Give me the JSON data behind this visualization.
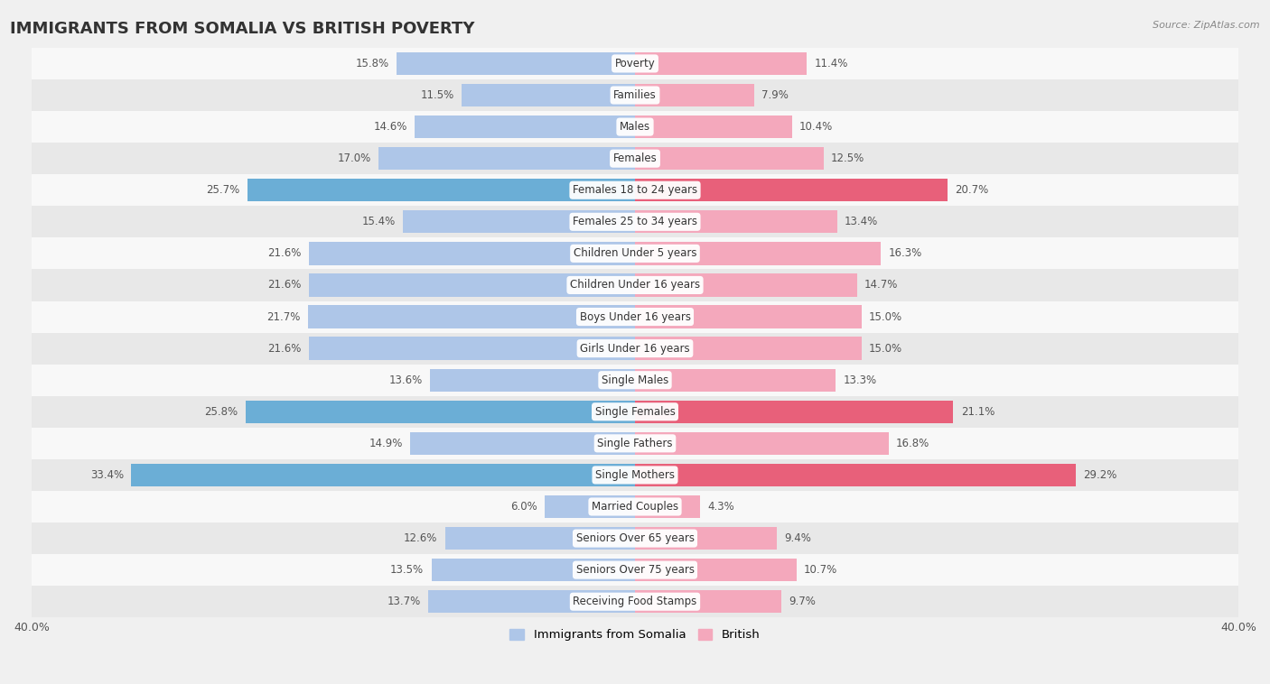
{
  "title": "IMMIGRANTS FROM SOMALIA VS BRITISH POVERTY",
  "source": "Source: ZipAtlas.com",
  "categories": [
    "Poverty",
    "Families",
    "Males",
    "Females",
    "Females 18 to 24 years",
    "Females 25 to 34 years",
    "Children Under 5 years",
    "Children Under 16 years",
    "Boys Under 16 years",
    "Girls Under 16 years",
    "Single Males",
    "Single Females",
    "Single Fathers",
    "Single Mothers",
    "Married Couples",
    "Seniors Over 65 years",
    "Seniors Over 75 years",
    "Receiving Food Stamps"
  ],
  "somalia_values": [
    15.8,
    11.5,
    14.6,
    17.0,
    25.7,
    15.4,
    21.6,
    21.6,
    21.7,
    21.6,
    13.6,
    25.8,
    14.9,
    33.4,
    6.0,
    12.6,
    13.5,
    13.7
  ],
  "british_values": [
    11.4,
    7.9,
    10.4,
    12.5,
    20.7,
    13.4,
    16.3,
    14.7,
    15.0,
    15.0,
    13.3,
    21.1,
    16.8,
    29.2,
    4.3,
    9.4,
    10.7,
    9.7
  ],
  "somalia_color": "#aec6e8",
  "british_color": "#f4a8bc",
  "somalia_highlight_indices": [
    4,
    11,
    13
  ],
  "british_highlight_indices": [
    4,
    11,
    13
  ],
  "somalia_highlight_color": "#6baed6",
  "british_highlight_color": "#e8607a",
  "background_color": "#f0f0f0",
  "row_color_light": "#f8f8f8",
  "row_color_dark": "#e8e8e8",
  "xlim": 40.0,
  "legend_somalia": "Immigrants from Somalia",
  "legend_british": "British",
  "title_fontsize": 13,
  "label_fontsize": 8.5,
  "value_fontsize": 8.5
}
